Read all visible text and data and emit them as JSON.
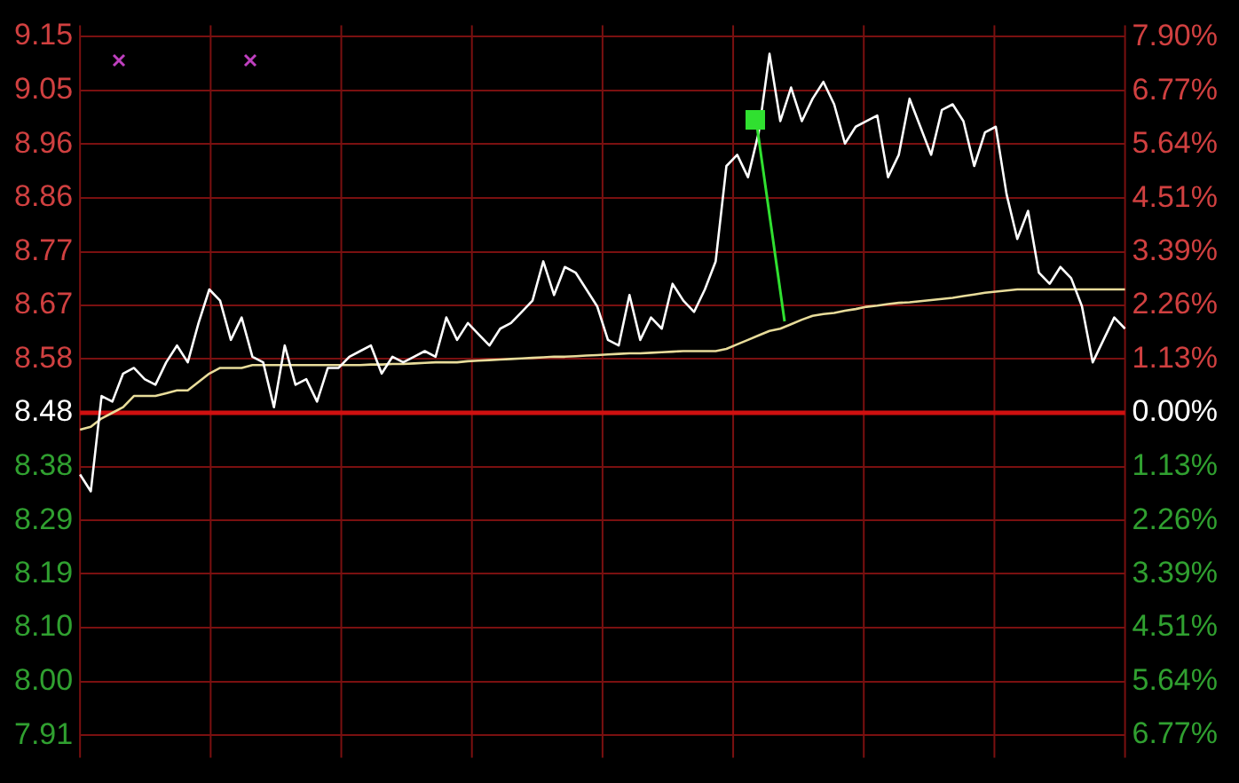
{
  "chart_data": {
    "type": "line",
    "categories": [
      null,
      null,
      null,
      null,
      null,
      null,
      null,
      null,
      null,
      null,
      null,
      null,
      null,
      null,
      null,
      null,
      null,
      null,
      null,
      null,
      null,
      null,
      null,
      null,
      null,
      null,
      null,
      null,
      null,
      null,
      null,
      null,
      null,
      null,
      null,
      null,
      null,
      null,
      null,
      null,
      null,
      null,
      null,
      null,
      null,
      null,
      null,
      null,
      null,
      null,
      null,
      null,
      null,
      null,
      null,
      null,
      null,
      null,
      null,
      null,
      null,
      null,
      null,
      null,
      null,
      null,
      null,
      null,
      null,
      null,
      null,
      null,
      null,
      null,
      null,
      null,
      null,
      null,
      null,
      null,
      null,
      null,
      null,
      null,
      null,
      null,
      null,
      null,
      null,
      null,
      null,
      null,
      null,
      null,
      null,
      null,
      null,
      null
    ],
    "series": [
      {
        "color": "#ffffff",
        "values": [
          8.37,
          8.34,
          8.51,
          8.5,
          8.55,
          8.56,
          8.54,
          8.53,
          8.57,
          8.6,
          8.57,
          8.64,
          8.7,
          8.68,
          8.61,
          8.65,
          8.58,
          8.57,
          8.49,
          8.6,
          8.53,
          8.54,
          8.5,
          8.56,
          8.56,
          8.58,
          8.59,
          8.6,
          8.55,
          8.58,
          8.57,
          8.58,
          8.59,
          8.58,
          8.65,
          8.61,
          8.64,
          8.62,
          8.6,
          8.63,
          8.64,
          8.66,
          8.68,
          8.75,
          8.69,
          8.74,
          8.73,
          8.7,
          8.67,
          8.61,
          8.6,
          8.69,
          8.61,
          8.65,
          8.63,
          8.71,
          8.68,
          8.66,
          8.7,
          8.75,
          8.92,
          8.94,
          8.9,
          8.98,
          9.12,
          9.0,
          9.06,
          9.0,
          9.04,
          9.07,
          9.03,
          8.96,
          8.99,
          9.0,
          9.01,
          8.9,
          8.94,
          9.04,
          8.99,
          8.94,
          9.02,
          9.03,
          9.0,
          8.92,
          8.98,
          8.99,
          8.87,
          8.79,
          8.84,
          8.73,
          8.71,
          8.74,
          8.72,
          8.67,
          8.57,
          8.61,
          8.65,
          8.63
        ]
      },
      {
        "color": "#e8dc9a",
        "values": [
          8.45,
          8.455,
          8.47,
          8.48,
          8.49,
          8.51,
          8.51,
          8.51,
          8.515,
          8.52,
          8.52,
          8.535,
          8.55,
          8.56,
          8.56,
          8.56,
          8.565,
          8.565,
          8.565,
          8.565,
          8.565,
          8.565,
          8.565,
          8.565,
          8.565,
          8.565,
          8.565,
          8.566,
          8.566,
          8.567,
          8.567,
          8.568,
          8.569,
          8.57,
          8.57,
          8.57,
          8.572,
          8.573,
          8.574,
          8.575,
          8.576,
          8.577,
          8.578,
          8.579,
          8.58,
          8.58,
          8.581,
          8.582,
          8.583,
          8.584,
          8.585,
          8.586,
          8.586,
          8.587,
          8.588,
          8.589,
          8.59,
          8.59,
          8.59,
          8.59,
          8.594,
          8.602,
          8.61,
          8.618,
          8.626,
          8.63,
          8.638,
          8.646,
          8.653,
          8.656,
          8.658,
          8.662,
          8.665,
          8.669,
          8.671,
          8.674,
          8.676,
          8.677,
          8.679,
          8.681,
          8.683,
          8.685,
          8.688,
          8.691,
          8.694,
          8.696,
          8.698,
          8.7,
          8.7,
          8.7,
          8.7,
          8.7,
          8.7,
          8.7,
          8.7,
          8.7,
          8.7,
          8.7
        ]
      }
    ],
    "ylim": [
      7.865,
      9.171
    ],
    "yticks": [
      {
        "value": 9.151,
        "label": "9.15"
      },
      {
        "value": 9.055,
        "label": "9.05"
      },
      {
        "value": 8.959,
        "label": "8.96"
      },
      {
        "value": 8.863,
        "label": "8.86"
      },
      {
        "value": 8.767,
        "label": "8.77"
      },
      {
        "value": 8.672,
        "label": "8.67"
      },
      {
        "value": 8.576,
        "label": "8.58"
      },
      {
        "value": 8.48,
        "label": "8.48"
      },
      {
        "value": 8.384,
        "label": "8.38"
      },
      {
        "value": 8.288,
        "label": "8.29"
      },
      {
        "value": 8.193,
        "label": "8.19"
      },
      {
        "value": 8.097,
        "label": "8.10"
      },
      {
        "value": 8.001,
        "label": "8.00"
      },
      {
        "value": 7.905,
        "label": "7.91"
      }
    ],
    "y2lim": [
      -7.25,
      8.15
    ],
    "y2ticks": [
      {
        "value": 7.9,
        "label": "7.90%"
      },
      {
        "value": 6.77,
        "label": "6.77%"
      },
      {
        "value": 5.64,
        "label": "5.64%"
      },
      {
        "value": 4.51,
        "label": "4.51%"
      },
      {
        "value": 3.39,
        "label": "3.39%"
      },
      {
        "value": 2.26,
        "label": "2.26%"
      },
      {
        "value": 1.13,
        "label": "1.13%"
      },
      {
        "value": 0,
        "label": "0.00%"
      },
      {
        "value": -1.13,
        "label": "1.13%"
      },
      {
        "value": -2.26,
        "label": "2.26%"
      },
      {
        "value": -3.39,
        "label": "3.39%"
      },
      {
        "value": -4.51,
        "label": "4.51%"
      },
      {
        "value": -5.64,
        "label": "5.64%"
      },
      {
        "value": -6.77,
        "label": "6.77%"
      }
    ],
    "ref_lines": [
      {
        "axis": "y",
        "value": 8.48,
        "color": "#d01010"
      }
    ],
    "grid": true,
    "legend": false,
    "marker": "none",
    "line_style": "solid"
  }
}
